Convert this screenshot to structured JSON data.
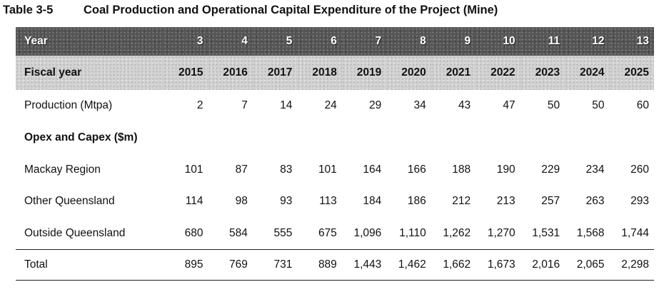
{
  "caption": {
    "number": "Table 3-5",
    "title": "Coal Production and Operational Capital Expenditure of the Project (Mine)"
  },
  "table": {
    "year_label": "Year",
    "years": [
      "3",
      "4",
      "5",
      "6",
      "7",
      "8",
      "9",
      "10",
      "11",
      "12",
      "13"
    ],
    "fiscal_label": "Fiscal year",
    "fiscal_years": [
      "2015",
      "2016",
      "2017",
      "2018",
      "2019",
      "2020",
      "2021",
      "2022",
      "2023",
      "2024",
      "2025"
    ],
    "production": {
      "label": "Production (Mtpa)",
      "values": [
        "2",
        "7",
        "14",
        "24",
        "29",
        "34",
        "43",
        "47",
        "50",
        "50",
        "60"
      ]
    },
    "section_label": "Opex and Capex ($m)",
    "mackay": {
      "label": "Mackay Region",
      "values": [
        "101",
        "87",
        "83",
        "101",
        "164",
        "166",
        "188",
        "190",
        "229",
        "234",
        "260"
      ]
    },
    "other_qld": {
      "label": "Other Queensland",
      "values": [
        "114",
        "98",
        "93",
        "113",
        "184",
        "186",
        "212",
        "213",
        "257",
        "263",
        "293"
      ]
    },
    "outside_qld": {
      "label": "Outside Queensland",
      "values": [
        "680",
        "584",
        "555",
        "675",
        "1,096",
        "1,110",
        "1,262",
        "1,270",
        "1,531",
        "1,568",
        "1,744"
      ]
    },
    "total": {
      "label": "Total",
      "values": [
        "895",
        "769",
        "731",
        "889",
        "1,443",
        "1,462",
        "1,662",
        "1,673",
        "2,016",
        "2,065",
        "2,298"
      ]
    }
  }
}
